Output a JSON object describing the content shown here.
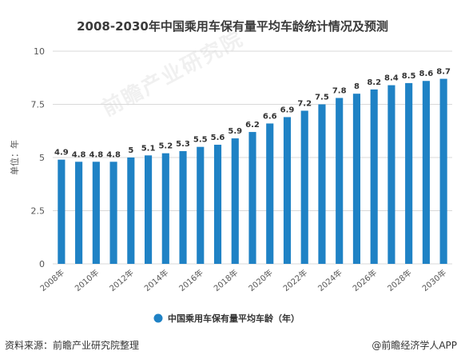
{
  "chart_data": {
    "type": "bar",
    "title": "2008-2030年中国乘用车保有量平均车龄统计情况及预测",
    "ylabel": "单位：年",
    "ylim": [
      0,
      10
    ],
    "yticks": [
      "0",
      "2.5",
      "5",
      "7.5",
      "10"
    ],
    "grid": true,
    "legend_position": "bottom",
    "color": "#1f82c5",
    "categories": [
      "2008年",
      "2009年",
      "2010年",
      "2011年",
      "2012年",
      "2013年",
      "2014年",
      "2015年",
      "2016年",
      "2017年",
      "2018年",
      "2019年",
      "2020年",
      "2021年",
      "2022年",
      "2023年",
      "2024年",
      "2025年",
      "2026年",
      "2027年",
      "2028年",
      "2029年",
      "2030年"
    ],
    "xtick_labels": [
      "2008年",
      "2010年",
      "2012年",
      "2014年",
      "2016年",
      "2018年",
      "2020年",
      "2022年",
      "2024年",
      "2026年",
      "2028年",
      "2030年"
    ],
    "series": [
      {
        "name": "中国乘用车保有量平均车龄（年）",
        "values": [
          4.9,
          4.8,
          4.8,
          4.8,
          5,
          5.1,
          5.2,
          5.3,
          5.5,
          5.6,
          5.9,
          6.2,
          6.6,
          6.9,
          7.2,
          7.5,
          7.8,
          8,
          8.2,
          8.4,
          8.5,
          8.6,
          8.7
        ]
      }
    ]
  },
  "watermark": "前瞻产业研究院",
  "footer": {
    "source": "资料来源：前瞻产业研究院整理",
    "credit": "@前瞻经济学人APP"
  }
}
